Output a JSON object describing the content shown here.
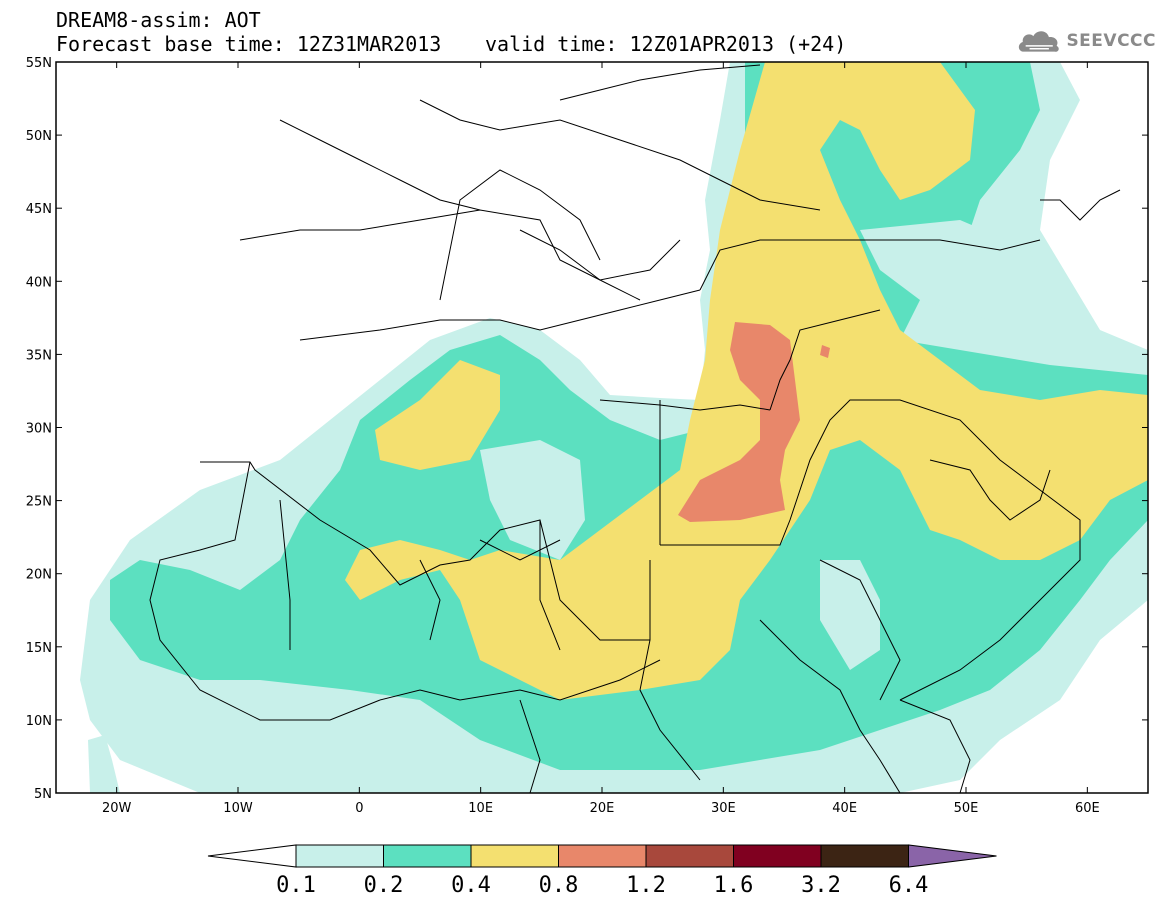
{
  "header": {
    "line1": "DREAM8-assim: AOT",
    "line2_left": "Forecast base time: 12Z31MAR2013",
    "line2_right": "valid time: 12Z01APR2013 (+24)"
  },
  "logo": {
    "text": "SEEVCCC",
    "icon": "cloud-logo-icon"
  },
  "axes": {
    "lat_labels": [
      "55N",
      "50N",
      "45N",
      "40N",
      "35N",
      "30N",
      "25N",
      "20N",
      "15N",
      "10N",
      "5N"
    ],
    "lat_values": [
      55,
      50,
      45,
      40,
      35,
      30,
      25,
      20,
      15,
      10,
      5
    ],
    "lon_labels": [
      "20W",
      "10W",
      "0",
      "10E",
      "20E",
      "30E",
      "40E",
      "50E",
      "60E"
    ],
    "lon_values": [
      -20,
      -10,
      0,
      10,
      20,
      30,
      40,
      50,
      60
    ],
    "lon_range": [
      -25,
      65
    ],
    "lat_range": [
      5,
      55
    ]
  },
  "colorbar": {
    "labels": [
      "0.1",
      "0.2",
      "0.4",
      "0.8",
      "1.2",
      "1.6",
      "3.2",
      "6.4"
    ],
    "colors": [
      "#ffffff",
      "#c8f0ea",
      "#5ce0c0",
      "#f4e070",
      "#e8876a",
      "#a8483c",
      "#800020",
      "#3c2414",
      "#8a64a8"
    ]
  },
  "colors": {
    "aot_0_1": "#c8f0ea",
    "aot_0_2": "#5ce0c0",
    "aot_0_4": "#f4e070",
    "aot_0_8": "#e8876a",
    "aot_1_2": "#a8483c"
  }
}
